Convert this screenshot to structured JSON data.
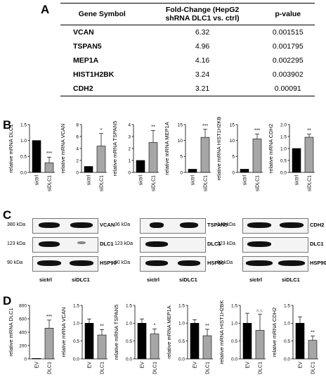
{
  "panels": {
    "a": "A",
    "b": "B",
    "c": "C",
    "d": "D"
  },
  "table": {
    "headers": [
      "Gene Symbol",
      "Fold-Change (HepG2 shRNA DLC1 vs. ctrl)",
      "p-value"
    ],
    "header_line1": "Fold-Change (HepG2",
    "header_line2": "shRNA DLC1 vs. ctrl)",
    "rows": [
      {
        "gene": "VCAN",
        "fc": "6.32",
        "p": "0.001515"
      },
      {
        "gene": "TSPAN5",
        "fc": "4.96",
        "p": "0.001795"
      },
      {
        "gene": "MEP1A",
        "fc": "4.16",
        "p": "0.002295"
      },
      {
        "gene": "HIST1H2BK",
        "fc": "3.24",
        "p": "0.003902"
      },
      {
        "gene": "CDH2",
        "fc": "3.21",
        "p": "0.00091"
      }
    ]
  },
  "chart_data": [
    {
      "type": "bar",
      "panel": "B",
      "ylabel": "relative mRNA DLC1",
      "categories": [
        "sictrl",
        "siDLC1"
      ],
      "values": [
        1.0,
        0.3
      ],
      "errors": [
        0,
        0.18
      ],
      "sig": [
        "",
        "***"
      ],
      "ylim": [
        0,
        1.5
      ],
      "ticks": [
        "0.0",
        "0.5",
        "1.0",
        "1.5"
      ]
    },
    {
      "type": "bar",
      "panel": "B",
      "ylabel": "relative mRNA VCAN",
      "categories": [
        "sictrl",
        "siDLC1"
      ],
      "values": [
        1.0,
        4.4
      ],
      "errors": [
        0,
        2.1
      ],
      "sig": [
        "",
        "*"
      ],
      "ylim": [
        0,
        8
      ],
      "ticks": [
        "0",
        "2",
        "4",
        "6",
        "8"
      ]
    },
    {
      "type": "bar",
      "panel": "B",
      "ylabel": "relative mRNA TSPAN5",
      "categories": [
        "sictrl",
        "siDLC1"
      ],
      "values": [
        1.0,
        2.5
      ],
      "errors": [
        0,
        1.0
      ],
      "sig": [
        "",
        "**"
      ],
      "ylim": [
        0,
        4
      ],
      "ticks": [
        "0",
        "1",
        "2",
        "3",
        "4"
      ]
    },
    {
      "type": "bar",
      "panel": "B",
      "ylabel": "relative mRNA MEP1A",
      "categories": [
        "sictrl",
        "siDLC1"
      ],
      "values": [
        1.0,
        11.0
      ],
      "errors": [
        0,
        2.5
      ],
      "sig": [
        "",
        "***"
      ],
      "ylim": [
        0,
        15
      ],
      "ticks": [
        "0",
        "5",
        "10",
        "15"
      ]
    },
    {
      "type": "bar",
      "panel": "B",
      "ylabel": "relative mRNA HIST1H2KB",
      "categories": [
        "sictrl",
        "siDLC1"
      ],
      "values": [
        1.0,
        10.5
      ],
      "errors": [
        0,
        1.5
      ],
      "sig": [
        "",
        "***"
      ],
      "ylim": [
        0,
        15
      ],
      "ticks": [
        "0",
        "5",
        "10",
        "15"
      ]
    },
    {
      "type": "bar",
      "panel": "B",
      "ylabel": "relative mRNA CDH2",
      "categories": [
        "sictrl",
        "siDLC1"
      ],
      "values": [
        1.0,
        1.47
      ],
      "errors": [
        0,
        0.13
      ],
      "sig": [
        "",
        "**"
      ],
      "ylim": [
        0,
        2.0
      ],
      "ticks": [
        "0.0",
        "0.5",
        "1.0",
        "1.5",
        "2.0"
      ]
    },
    {
      "type": "bar",
      "panel": "D",
      "ylabel": "relative mRNA DLC1",
      "categories": [
        "EV",
        "DLC1"
      ],
      "values": [
        1,
        460
      ],
      "errors": [
        0,
        120
      ],
      "sig": [
        "",
        "***"
      ],
      "ylim": [
        0,
        800
      ],
      "ticks": [
        "0",
        "200",
        "400",
        "600",
        "800"
      ]
    },
    {
      "type": "bar",
      "panel": "D",
      "ylabel": "relative mRNA VCAN",
      "categories": [
        "EV",
        "DLC1"
      ],
      "values": [
        1.0,
        0.67
      ],
      "errors": [
        0.12,
        0.15
      ],
      "sig": [
        "",
        "**"
      ],
      "ylim": [
        0,
        1.5
      ],
      "ticks": [
        "0.0",
        "0.5",
        "1.0",
        "1.5"
      ]
    },
    {
      "type": "bar",
      "panel": "D",
      "ylabel": "relative mRNA TSPAN5",
      "categories": [
        "EV",
        "DLC1"
      ],
      "values": [
        1.0,
        0.7
      ],
      "errors": [
        0.12,
        0.14
      ],
      "sig": [
        "",
        "*"
      ],
      "ylim": [
        0,
        1.5
      ],
      "ticks": [
        "0.0",
        "0.5",
        "1.0",
        "1.5"
      ]
    },
    {
      "type": "bar",
      "panel": "D",
      "ylabel": "relative mRNA MEP1A",
      "categories": [
        "EV",
        "DLC1"
      ],
      "values": [
        1.0,
        0.65
      ],
      "errors": [
        0.1,
        0.18
      ],
      "sig": [
        "",
        "**"
      ],
      "ylim": [
        0,
        1.5
      ],
      "ticks": [
        "0.0",
        "0.5",
        "1.0",
        "1.5"
      ]
    },
    {
      "type": "bar",
      "panel": "D",
      "ylabel": "relative mRNA HIST1H2BK",
      "categories": [
        "EV",
        "DLC1"
      ],
      "values": [
        1.0,
        0.8
      ],
      "errors": [
        0.28,
        0.45
      ],
      "sig": [
        "",
        "n.s."
      ],
      "ylim": [
        0,
        1.5
      ],
      "ticks": [
        "0.0",
        "0.5",
        "1.0",
        "1.5"
      ]
    },
    {
      "type": "bar",
      "panel": "D",
      "ylabel": "relative mRNA CDH2",
      "categories": [
        "EV",
        "DLC1"
      ],
      "values": [
        1.0,
        0.52
      ],
      "errors": [
        0.18,
        0.12
      ],
      "sig": [
        "",
        "**"
      ],
      "ylim": [
        0,
        1.5
      ],
      "ticks": [
        "0.0",
        "0.5",
        "1.0",
        "1.5"
      ]
    }
  ],
  "blots": [
    {
      "rows": [
        {
          "kda": "380 kDa",
          "label": "VCAN"
        },
        {
          "kda": "123 kDa",
          "label": "DLC1"
        },
        {
          "kda": "90 kDa",
          "label": "HSP90"
        }
      ],
      "lanes": [
        "sictrl",
        "siDLC1"
      ]
    },
    {
      "rows": [
        {
          "kda": "36 kDa",
          "label": "TSPAN5"
        },
        {
          "kda": "123 kDa",
          "label": "DLC1"
        },
        {
          "kda": "90 kDa",
          "label": "HSP90"
        }
      ],
      "lanes": [
        "sictrl",
        "siDLC1"
      ]
    },
    {
      "rows": [
        {
          "kda": "140 kDa",
          "label": "CDH2"
        },
        {
          "kda": "123 kDa",
          "label": "DLC1"
        },
        {
          "kda": "90 kDa",
          "label": "HSP90"
        }
      ],
      "lanes": [
        "sictrl",
        "siDLC1"
      ]
    }
  ],
  "colors": {
    "control": "#000000",
    "treated": "#a6a6a6"
  }
}
